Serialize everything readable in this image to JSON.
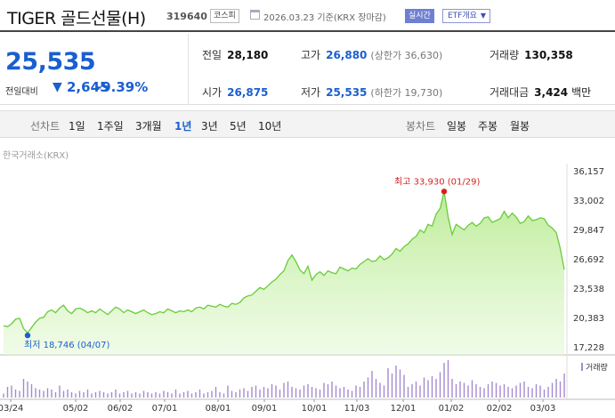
{
  "header": {
    "name": "TIGER 골드선물(H)",
    "code": "319640",
    "market": "코스피",
    "date_text": "2026.03.23 기준(KRX 장마감)",
    "realtime": "실시간",
    "etf_info": "ETF개요",
    "etf_arrow": "▼"
  },
  "price": {
    "current": "25,535",
    "compare_label": "전일대비",
    "direction_icon": "▼",
    "change": "2,645",
    "change_pct": "-9.39%"
  },
  "stats": {
    "prev_label": "전일",
    "prev": "28,180",
    "high_label": "고가",
    "high": "26,880",
    "upper_limit": "(상한가 36,630)",
    "volume_label": "거래량",
    "volume": "130,358",
    "open_label": "시가",
    "open": "26,875",
    "low_label": "저가",
    "low": "25,535",
    "lower_limit": "(하한가 19,730)",
    "amount_label": "거래대금",
    "amount": "3,424",
    "amount_unit": "백만"
  },
  "periods": {
    "line_label": "선차트",
    "items": [
      "1일",
      "1주일",
      "3개월",
      "1년",
      "3년",
      "5년",
      "10년"
    ],
    "active": "1년",
    "candle_label": "봉차트",
    "candle_items": [
      "일봉",
      "주봉",
      "월봉"
    ]
  },
  "chart_source": "한국거래소(KRX)",
  "colors": {
    "up": "#d81f1f",
    "down": "#1a5fd0",
    "line": "#6acb3a",
    "volume": "#a58ad1"
  },
  "chart_data": {
    "type": "area",
    "y_ticks": [
      "36,157",
      "33,002",
      "29,847",
      "26,692",
      "23,538",
      "20,383",
      "17,228"
    ],
    "ylim": [
      17228,
      36157
    ],
    "x_ticks": [
      "03/24",
      "05/02",
      "06/02",
      "07/01",
      "08/01",
      "09/01",
      "10/01",
      "11/03",
      "12/01",
      "01/02",
      "02/02",
      "03/03"
    ],
    "max_label": "최고 33,930 (01/29)",
    "min_label": "최저 18,746 (04/07)",
    "volume_label": "거래량",
    "series": [
      {
        "values": [
          19500,
          19400,
          19700,
          20200,
          20300,
          19200,
          18746,
          19300,
          19900,
          20300,
          20400,
          21000,
          21200,
          20900,
          21400,
          21700,
          21100,
          20800,
          21300,
          21400,
          21200,
          20900,
          21100,
          20900,
          21300,
          21000,
          20700,
          21100,
          21500,
          21300,
          20900,
          21200,
          21000,
          20800,
          21000,
          21200,
          20900,
          20700,
          20800,
          21000,
          20900,
          21300,
          21100,
          20900,
          21100,
          21000,
          21200,
          21000,
          21400,
          21500,
          21300,
          21700,
          21600,
          21500,
          21800,
          21600,
          21500,
          21900,
          21800,
          22000,
          22500,
          22700,
          22800,
          23200,
          23600,
          23400,
          23800,
          24200,
          24500,
          25000,
          25400,
          26500,
          27100,
          26400,
          25500,
          25100,
          25900,
          24400,
          25000,
          25300,
          24900,
          25400,
          25200,
          25100,
          25800,
          25600,
          25400,
          25700,
          25600,
          26100,
          26400,
          26700,
          26400,
          26500,
          27000,
          26600,
          26800,
          27200,
          27800,
          27500,
          28000,
          28300,
          28800,
          29100,
          29800,
          29500,
          30400,
          30200,
          31500,
          32100,
          33930,
          31200,
          29300,
          30400,
          30100,
          29800,
          30300,
          30600,
          30200,
          30500,
          31100,
          31200,
          30600,
          30800,
          31000,
          31800,
          31100,
          31600,
          31200,
          30500,
          30700,
          31300,
          30800,
          30900,
          31100,
          31000,
          30300,
          30000,
          29500,
          27800,
          25535
        ]
      }
    ],
    "volume": [
      3,
      8,
      9,
      6,
      5,
      14,
      12,
      10,
      7,
      6,
      5,
      7,
      6,
      4,
      9,
      5,
      6,
      4,
      3,
      5,
      4,
      6,
      3,
      4,
      5,
      4,
      3,
      4,
      6,
      3,
      4,
      5,
      3,
      4,
      3,
      5,
      4,
      3,
      4,
      3,
      5,
      4,
      3,
      6,
      3,
      4,
      5,
      3,
      4,
      6,
      3,
      4,
      5,
      8,
      4,
      3,
      9,
      5,
      4,
      6,
      7,
      5,
      8,
      9,
      6,
      8,
      7,
      10,
      9,
      6,
      11,
      12,
      8,
      7,
      6,
      9,
      10,
      8,
      7,
      6,
      11,
      10,
      12,
      9,
      7,
      8,
      6,
      5,
      9,
      8,
      12,
      15,
      20,
      14,
      11,
      9,
      22,
      18,
      24,
      21,
      17,
      8,
      10,
      12,
      9,
      15,
      13,
      16,
      14,
      19,
      26,
      28,
      14,
      10,
      12,
      11,
      9,
      13,
      10,
      8,
      7,
      10,
      12,
      11,
      9,
      10,
      8,
      7,
      9,
      11,
      12,
      8,
      7,
      10,
      9,
      6,
      8,
      11,
      14,
      12,
      18
    ]
  }
}
